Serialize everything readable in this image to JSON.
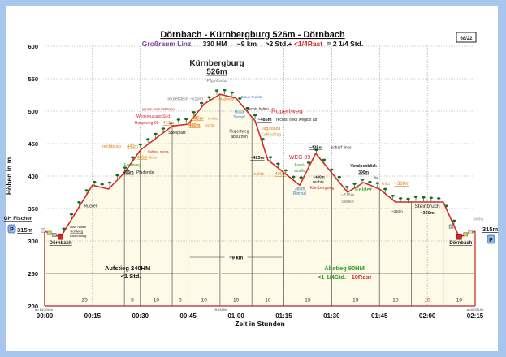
{
  "header": {
    "title": "Dörnbach - Kürnbergburg 526m - Dörnbach",
    "region": "Großraum Linz",
    "height_meters": "330 HM",
    "distance": "~9 km",
    "duration": ">2 Std.+",
    "rest": "<1/4Rast",
    "total": "= 2 1/4 Std.",
    "badge": "68/22"
  },
  "colors": {
    "profile": "#d42a2a",
    "fill": "#fdfbe8",
    "tree": "#1f8a2a",
    "region": "#7b3fa0",
    "red": "#d0282d",
    "orange": "#e07a10",
    "green": "#2f9a2a",
    "blue": "#3a78c0",
    "gray": "#777777",
    "dark": "#222222",
    "background": "#a8c6ec"
  },
  "chart_data": {
    "type": "area",
    "xlabel": "Zeit in Stunden",
    "ylabel": "Höhen in m",
    "xlim": [
      0,
      135
    ],
    "ylim": [
      200,
      600
    ],
    "grid": true,
    "x_ticks": [
      {
        "t": 0,
        "label": "00:00"
      },
      {
        "t": 15,
        "label": "00:15"
      },
      {
        "t": 30,
        "label": "00:30"
      },
      {
        "t": 45,
        "label": "00:45"
      },
      {
        "t": 60,
        "label": "01:00"
      },
      {
        "t": 75,
        "label": "01:15"
      },
      {
        "t": 90,
        "label": "01:30"
      },
      {
        "t": 105,
        "label": "01:45"
      },
      {
        "t": 120,
        "label": "02:00"
      },
      {
        "t": 135,
        "label": "02:15"
      }
    ],
    "y_ticks": [
      "200",
      "250",
      "300",
      "350",
      "400",
      "450",
      "500",
      "550",
      "600"
    ],
    "profile": [
      [
        0,
        315
      ],
      [
        5,
        306
      ],
      [
        15,
        386
      ],
      [
        20,
        380
      ],
      [
        25,
        405
      ],
      [
        30,
        440
      ],
      [
        40,
        477
      ],
      [
        45,
        480
      ],
      [
        50,
        511
      ],
      [
        55,
        526
      ],
      [
        60,
        520
      ],
      [
        66,
        485
      ],
      [
        70,
        425
      ],
      [
        80,
        386
      ],
      [
        85,
        435
      ],
      [
        95,
        375
      ],
      [
        100,
        390
      ],
      [
        105,
        380
      ],
      [
        110,
        360
      ],
      [
        115,
        360
      ],
      [
        125,
        360
      ],
      [
        130,
        306
      ],
      [
        135,
        315
      ]
    ],
    "segments": [
      {
        "from": 0,
        "to": 25,
        "label": "25",
        "color": "dark"
      },
      {
        "from": 25,
        "to": 30,
        "label": "5",
        "color": "dark"
      },
      {
        "from": 30,
        "to": 40,
        "label": "10",
        "color": "dark"
      },
      {
        "from": 40,
        "to": 45,
        "label": "5",
        "color": "dark"
      },
      {
        "from": 45,
        "to": 55,
        "label": "10",
        "color": "dark"
      },
      {
        "from": 55,
        "to": 65,
        "label": "10",
        "color": "dark"
      },
      {
        "from": 65,
        "to": 75,
        "label": "10",
        "color": "dark"
      },
      {
        "from": 75,
        "to": 90,
        "label": "15",
        "color": "dark"
      },
      {
        "from": 90,
        "to": 105,
        "label": "15",
        "color": "dark"
      },
      {
        "from": 105,
        "to": 115,
        "label": "10",
        "color": "dark"
      },
      {
        "from": 115,
        "to": 125,
        "label": "10",
        "color": "red"
      },
      {
        "from": 125,
        "to": 135,
        "label": "10",
        "color": "dark"
      }
    ],
    "clock_times": [
      {
        "t": 0,
        "label": "ab 14:20Uhr"
      },
      {
        "t": 55,
        "label": "15:15Uhr"
      },
      {
        "t": 135,
        "label": "an16:35Uhr"
      }
    ],
    "ascent": {
      "title": "Aufstieg  240HM",
      "time": "<1 Std.",
      "from": 0,
      "to": 55
    },
    "descent": {
      "title": "Abstieg 90HM",
      "time": "<1 1/4Std.+ ",
      "rest": "10Rast",
      "from": 55,
      "to": 135
    },
    "distance_label": {
      "text": "~9 km",
      "from": 45,
      "to": 75,
      "e": 275
    },
    "annotations": [
      {
        "t": 54,
        "e": 570,
        "text": "Kürnbergburg",
        "c": "dark",
        "s": 10,
        "b": true,
        "u": true
      },
      {
        "t": 54,
        "e": 557,
        "text": "526m",
        "c": "dark",
        "s": 10,
        "b": true,
        "u": true
      },
      {
        "t": 54,
        "e": 545,
        "text": "Pilgerkreuz",
        "c": "gray",
        "s": 5
      },
      {
        "t": 44,
        "e": 517,
        "text": "Teufelstein ~510m",
        "c": "gray",
        "s": 5.5
      },
      {
        "t": 57,
        "e": 517,
        "text": "Madonna",
        "c": "orange",
        "s": 4.5
      },
      {
        "t": 65,
        "e": 520,
        "text": "Blaue Punkte",
        "c": "blue",
        "s": 4.5
      },
      {
        "t": 61,
        "e": 497,
        "text": "Rosa",
        "c": "blue",
        "s": 5
      },
      {
        "t": 61,
        "e": 489,
        "text": "Sumpf",
        "c": "blue",
        "s": 5
      },
      {
        "t": 67,
        "e": 502,
        "text": "rechts halten",
        "c": "dark",
        "s": 4.5
      },
      {
        "t": 76,
        "e": 497,
        "text": "Rupertweg",
        "c": "red",
        "s": 8
      },
      {
        "t": 69,
        "e": 485,
        "text": "~485m",
        "c": "dark",
        "s": 5.5,
        "b": true,
        "u": true
      },
      {
        "t": 79,
        "e": 485,
        "text": "rechts, links weglos ab",
        "c": "dark",
        "s": 5
      },
      {
        "t": 71,
        "e": 471,
        "text": "Jagastand",
        "c": "orange",
        "s": 5
      },
      {
        "t": 71,
        "e": 462,
        "text": "Kahlschlag",
        "c": "orange",
        "s": 5
      },
      {
        "t": 61,
        "e": 467,
        "text": "Rupertweg",
        "c": "dark",
        "s": 5
      },
      {
        "t": 61,
        "e": 459,
        "text": "abkürzen",
        "c": "dark",
        "s": 5
      },
      {
        "t": 66.7,
        "e": 426,
        "text": "~425m",
        "c": "dark",
        "s": 5.5,
        "b": true,
        "u": true
      },
      {
        "t": 80,
        "e": 426,
        "text": "WEG 09",
        "c": "red",
        "s": 7
      },
      {
        "t": 80,
        "e": 415,
        "text": "Forst-",
        "c": "green",
        "s": 5
      },
      {
        "t": 80,
        "e": 406,
        "text": "straße",
        "c": "green",
        "s": 5
      },
      {
        "t": 67,
        "e": 401,
        "text": "rechts",
        "c": "orange",
        "s": 5
      },
      {
        "t": 74,
        "e": 401,
        "text": "400m",
        "c": "orange",
        "s": 5.5,
        "u": true
      },
      {
        "t": 85,
        "e": 442,
        "text": "~435m",
        "c": "dark",
        "s": 5.5,
        "b": true,
        "u": true
      },
      {
        "t": 93,
        "e": 442,
        "text": "scharf links",
        "c": "dark",
        "s": 5
      },
      {
        "t": 80,
        "e": 379,
        "text": "386m",
        "c": "blue",
        "s": 5,
        "u": true
      },
      {
        "t": 80,
        "e": 371,
        "text": "Rinnsal",
        "c": "blue",
        "s": 5
      },
      {
        "t": 86,
        "e": 397,
        "text": "~400m",
        "c": "dark",
        "s": 4.5,
        "b": true
      },
      {
        "t": 86,
        "e": 389,
        "text": "rechts.",
        "c": "dark",
        "s": 5
      },
      {
        "t": 87,
        "e": 380,
        "text": "Kürnbergweg",
        "c": "red",
        "s": 5
      },
      {
        "t": 95,
        "e": 369,
        "text": "~375m",
        "c": "gray",
        "s": 5.5
      },
      {
        "t": 95,
        "e": 359,
        "text": "Senke",
        "c": "gray",
        "s": 5.5
      },
      {
        "t": 100,
        "e": 376,
        "text": "Felder",
        "c": "green",
        "s": 7.5
      },
      {
        "t": 100,
        "e": 414,
        "text": "Voralpenblick",
        "c": "dark",
        "s": 5,
        "b": true
      },
      {
        "t": 100,
        "e": 404,
        "text": "390m",
        "c": "dark",
        "s": 5,
        "b": true,
        "u": true
      },
      {
        "t": 104,
        "e": 396,
        "text": "Hof",
        "c": "dark",
        "s": 3.5
      },
      {
        "t": 107,
        "e": 386,
        "text": "links",
        "c": "orange",
        "s": 5
      },
      {
        "t": 112,
        "e": 386,
        "text": "~380m",
        "c": "orange",
        "s": 6,
        "u": true
      },
      {
        "t": 110.5,
        "e": 344,
        "text": "~360m",
        "c": "dark",
        "s": 4.5
      },
      {
        "t": 120,
        "e": 351,
        "text": "Steinbruch",
        "c": "dark",
        "s": 6.5
      },
      {
        "t": 120,
        "e": 341,
        "text": "~360m",
        "c": "dark",
        "s": 5.5,
        "b": true
      },
      {
        "t": 130.5,
        "e": 295,
        "text": "Dörnbach",
        "c": "dark",
        "s": 6,
        "b": true,
        "u": true
      },
      {
        "t": 136,
        "e": 332,
        "text": "Kirche",
        "c": "gray",
        "s": 4.5
      },
      {
        "t": 5,
        "e": 295,
        "text": "Dörnbach",
        "c": "dark",
        "s": 6,
        "b": true,
        "u": true
      },
      {
        "t": 10.5,
        "e": 320,
        "text": "links halten",
        "c": "dark",
        "s": 4
      },
      {
        "t": 10,
        "e": 313,
        "text": "Hohlweg",
        "c": "dark",
        "s": 4,
        "u": true
      },
      {
        "t": 10.5,
        "e": 306,
        "text": "Lackenweg",
        "c": "dark",
        "s": 4
      },
      {
        "t": 14.5,
        "e": 352,
        "text": "Rücken",
        "c": "dark",
        "s": 5
      },
      {
        "t": 27.5,
        "e": 415,
        "text": "Forstweg",
        "c": "green",
        "s": 5
      },
      {
        "t": 26.3,
        "e": 404,
        "text": "405m",
        "c": "dark",
        "s": 5,
        "b": true,
        "u": true
      },
      {
        "t": 31.5,
        "e": 404,
        "text": "Pfadende",
        "c": "dark",
        "s": 5
      },
      {
        "t": 21,
        "e": 444,
        "text": "rechts ab",
        "c": "orange",
        "s": 5.5
      },
      {
        "t": 27.5,
        "e": 444,
        "text": "440m",
        "c": "orange",
        "s": 5.5,
        "u": true
      },
      {
        "t": 35.6,
        "e": 436,
        "text": "Ruffing, rechts",
        "c": "red",
        "s": 4
      },
      {
        "t": 30.6,
        "e": 427,
        "text": "430m",
        "c": "orange",
        "s": 5,
        "u": true
      },
      {
        "t": 34,
        "e": 427,
        "text": "links",
        "c": "orange",
        "s": 4.5
      },
      {
        "t": 35.6,
        "e": 502,
        "text": "gerade nach Wilhering",
        "c": "red",
        "s": 4
      },
      {
        "t": 34,
        "e": 490,
        "text": "Wegkreuzung Süd",
        "c": "red",
        "s": 5
      },
      {
        "t": 32,
        "e": 480,
        "text": "Hauptweg 09",
        "c": "red",
        "s": 5
      },
      {
        "t": 38.8,
        "e": 480,
        "text": "477m",
        "c": "orange",
        "s": 5.5,
        "u": true
      },
      {
        "t": 48,
        "e": 487,
        "text": "485m",
        "c": "orange",
        "s": 5.5,
        "b": true,
        "u": true
      },
      {
        "t": 52.7,
        "e": 487,
        "text": "rechts",
        "c": "orange",
        "s": 4.5
      },
      {
        "t": 47,
        "e": 476,
        "text": "480m",
        "c": "orange",
        "s": 5.5,
        "b": true,
        "u": true
      },
      {
        "t": 51.7,
        "e": 476,
        "text": "rechts",
        "c": "orange",
        "s": 4.5
      },
      {
        "t": 41.5,
        "e": 465,
        "text": "Spielplatz",
        "c": "dark",
        "s": 5
      }
    ]
  },
  "side_labels": {
    "left_place": "GH Fischer",
    "left_parking": "P",
    "left_height": "315m",
    "right_parking": "P",
    "right_height": "315m"
  }
}
